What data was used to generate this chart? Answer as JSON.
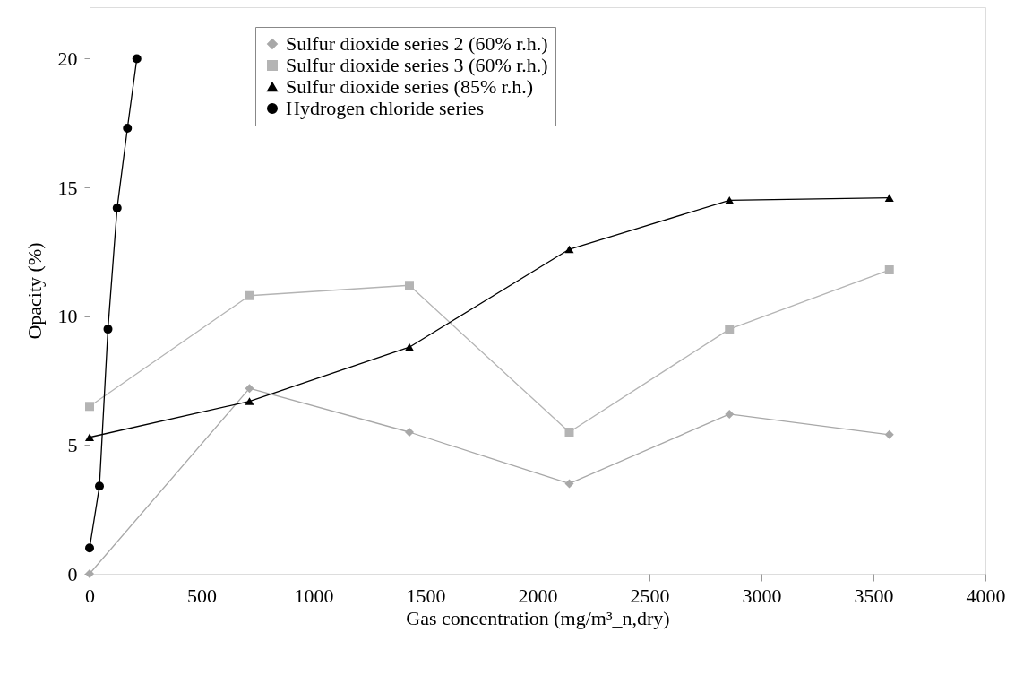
{
  "chart_data": {
    "type": "line",
    "xlabel": "Gas concentration (mg/m³_n,dry)",
    "ylabel": "Opacity (%)",
    "xlim": [
      0,
      4000
    ],
    "xticks": [
      0,
      500,
      1000,
      1500,
      2000,
      2500,
      3000,
      3500,
      4000
    ],
    "ylim": [
      0,
      22
    ],
    "yticks": [
      0,
      5,
      10,
      15,
      20
    ],
    "grid": false,
    "legend": "top",
    "series": [
      {
        "name": "Sulfur dioxide series 2 (60% r.h.)",
        "color": "#a8a8a8",
        "marker": "diamond",
        "x": [
          0,
          714,
          1428,
          2142,
          2857,
          3571
        ],
        "values": [
          0,
          7.2,
          5.5,
          3.5,
          6.2,
          5.4
        ]
      },
      {
        "name": "Sulfur dioxide series 3 (60% r.h.)",
        "color": "#b4b4b4",
        "marker": "square",
        "x": [
          0,
          714,
          1428,
          2142,
          2857,
          3571
        ],
        "values": [
          6.5,
          10.8,
          11.2,
          5.5,
          9.5,
          11.8
        ]
      },
      {
        "name": "Sulfur dioxide series (85% r.h.)",
        "color": "#000000",
        "marker": "triangle",
        "x": [
          0,
          714,
          1428,
          2142,
          2857,
          3571
        ],
        "values": [
          5.3,
          6.7,
          8.8,
          12.6,
          14.5,
          14.6
        ]
      },
      {
        "name": "Hydrogen chloride series",
        "color": "#000000",
        "marker": "circle",
        "x": [
          0,
          44,
          82,
          123,
          169,
          211
        ],
        "values": [
          1.0,
          3.4,
          9.5,
          14.2,
          17.3,
          20.0
        ]
      }
    ]
  }
}
